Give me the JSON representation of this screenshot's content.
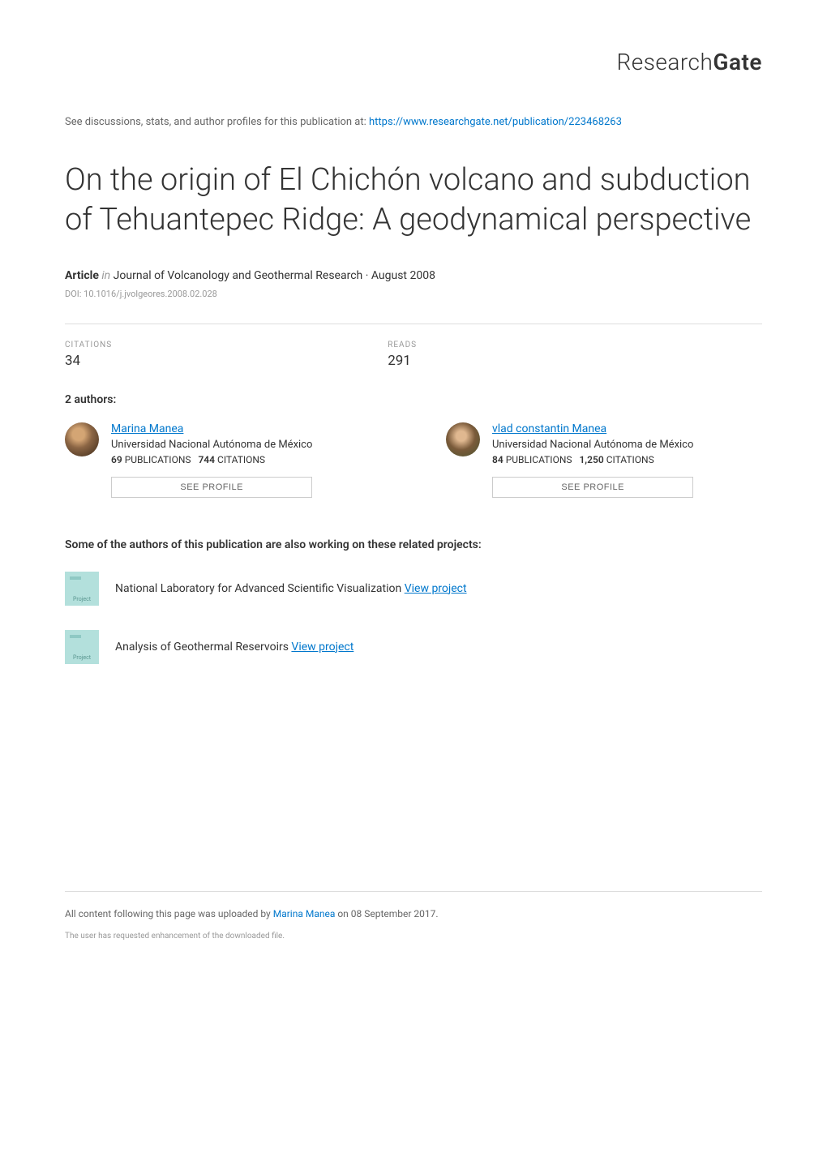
{
  "header": {
    "logo_part1": "Research",
    "logo_part2": "Gate"
  },
  "discussion": {
    "prefix": "See discussions, stats, and author profiles for this publication at: ",
    "url": "https://www.researchgate.net/publication/223468263"
  },
  "title": "On the origin of El Chichón volcano and subduction of Tehuantepec Ridge: A geodynamical perspective",
  "article": {
    "type_label": "Article",
    "in_label": "in",
    "journal": "Journal of Volcanology and Geothermal Research · August 2008",
    "doi": "DOI: 10.1016/j.jvolgeores.2008.02.028"
  },
  "stats": {
    "citations": {
      "label": "CITATIONS",
      "value": "34"
    },
    "reads": {
      "label": "READS",
      "value": "291"
    }
  },
  "authors_heading": "2 authors:",
  "authors": [
    {
      "name": "Marina Manea",
      "affiliation": "Universidad Nacional Autónoma de México",
      "pubs_count": "69",
      "pubs_label": "PUBLICATIONS",
      "cite_count": "744",
      "cite_label": "CITATIONS",
      "profile_btn": "SEE PROFILE"
    },
    {
      "name": "vlad constantin Manea",
      "affiliation": "Universidad Nacional Autónoma de México",
      "pubs_count": "84",
      "pubs_label": "PUBLICATIONS",
      "cite_count": "1,250",
      "cite_label": "CITATIONS",
      "profile_btn": "SEE PROFILE"
    }
  ],
  "projects_heading": "Some of the authors of this publication are also working on these related projects:",
  "projects": [
    {
      "icon_label": "Project",
      "title": "National Laboratory for Advanced Scientific Visualization",
      "link_label": "View project"
    },
    {
      "icon_label": "Project",
      "title": "Analysis of Geothermal Reservoirs",
      "link_label": "View project"
    }
  ],
  "footer": {
    "line1_prefix": "All content following this page was uploaded by ",
    "line1_author": "Marina Manea",
    "line1_suffix": " on 08 September 2017.",
    "line2": "The user has requested enhancement of the downloaded file."
  },
  "colors": {
    "link": "#0077cc",
    "text": "#333333",
    "muted": "#999999",
    "border": "#dddddd",
    "project_bg": "#b3e0dc"
  }
}
